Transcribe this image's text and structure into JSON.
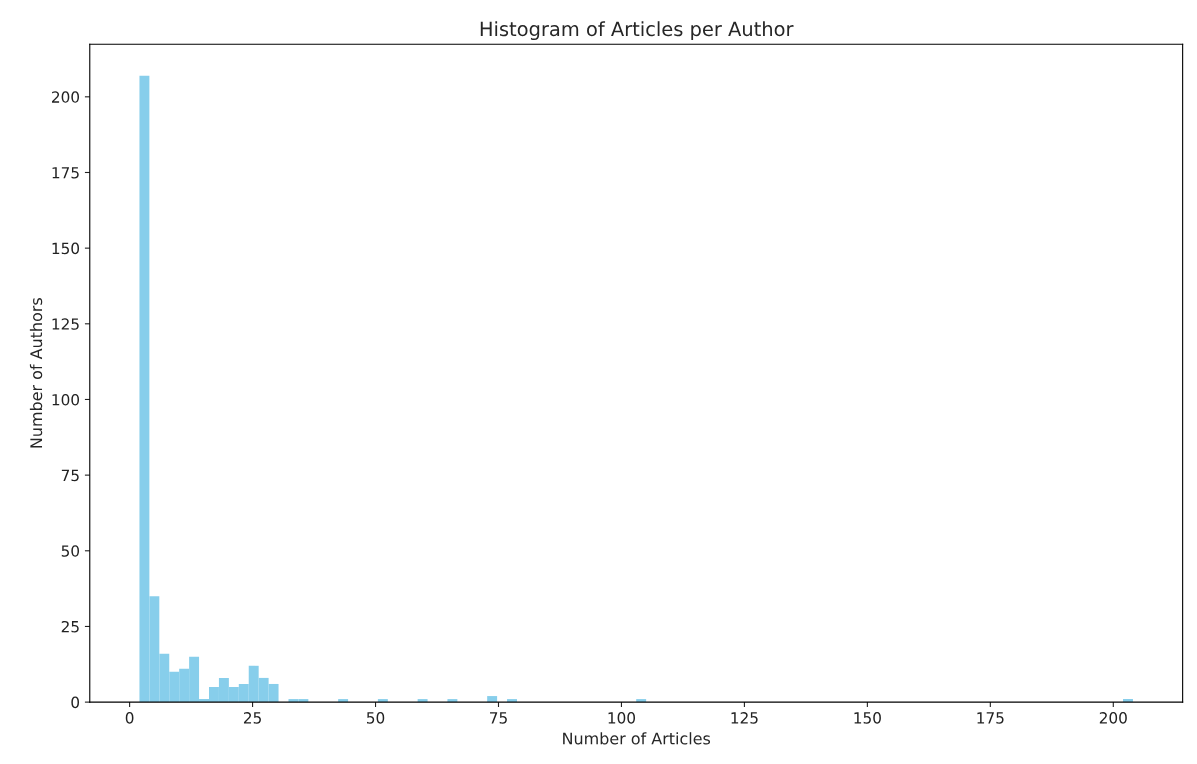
{
  "chart_data": {
    "type": "histogram",
    "title": "Histogram of Articles per Author",
    "xlabel": "Number of Articles",
    "ylabel": "Number of Authors",
    "bins": [
      2,
      4.02,
      6.04,
      8.06,
      10.08,
      12.1,
      14.12,
      16.14,
      18.16,
      20.18,
      22.2,
      24.22,
      26.24,
      28.26,
      30.28,
      32.3,
      34.32,
      36.34,
      38.36,
      40.38,
      42.4,
      44.42,
      46.44,
      48.46,
      50.48,
      52.5,
      54.52,
      56.54,
      58.56,
      60.58,
      62.6,
      64.62,
      66.64,
      68.66,
      70.68,
      72.7,
      74.72,
      76.74,
      78.76,
      80.78,
      82.8,
      84.82,
      86.84,
      88.86,
      90.88,
      92.9,
      94.92,
      96.94,
      98.96,
      100.98,
      103,
      105.02,
      107.04,
      109.06,
      111.08,
      113.1,
      115.12,
      117.14,
      119.16,
      121.18,
      123.2,
      125.22,
      127.24,
      129.26,
      131.28,
      133.3,
      135.32,
      137.34,
      139.36,
      141.38,
      143.4,
      145.42,
      147.44,
      149.46,
      151.48,
      153.5,
      155.52,
      157.54,
      159.56,
      161.58,
      163.6,
      165.62,
      167.64,
      169.66,
      171.68,
      173.7,
      175.72,
      177.74,
      179.76,
      181.78,
      183.8,
      185.82,
      187.84,
      189.86,
      191.88,
      193.9,
      195.92,
      197.94,
      199.96,
      201.98,
      204
    ],
    "values": [
      207,
      35,
      16,
      10,
      11,
      15,
      1,
      5,
      8,
      5,
      6,
      12,
      8,
      6,
      0,
      1,
      1,
      0,
      0,
      0,
      1,
      0,
      0,
      0,
      1,
      0,
      0,
      0,
      1,
      0,
      0,
      1,
      0,
      0,
      0,
      2,
      0,
      1,
      0,
      0,
      0,
      0,
      0,
      0,
      0,
      0,
      0,
      0,
      0,
      0,
      1,
      0,
      0,
      0,
      0,
      0,
      0,
      0,
      0,
      0,
      0,
      0,
      0,
      0,
      0,
      0,
      0,
      0,
      0,
      0,
      0,
      0,
      0,
      0,
      0,
      0,
      0,
      0,
      0,
      0,
      0,
      0,
      0,
      0,
      0,
      0,
      0,
      0,
      0,
      0,
      0,
      0,
      0,
      0,
      0,
      0,
      0,
      0,
      0,
      1
    ],
    "color": "#87ceeb",
    "xlim": [
      -8.1,
      214.1
    ],
    "ylim": [
      0,
      217.35
    ],
    "xticks": [
      0,
      25,
      50,
      75,
      100,
      125,
      150,
      175,
      200
    ],
    "yticks": [
      0,
      25,
      50,
      75,
      100,
      125,
      150,
      175,
      200
    ],
    "grid": false
  }
}
